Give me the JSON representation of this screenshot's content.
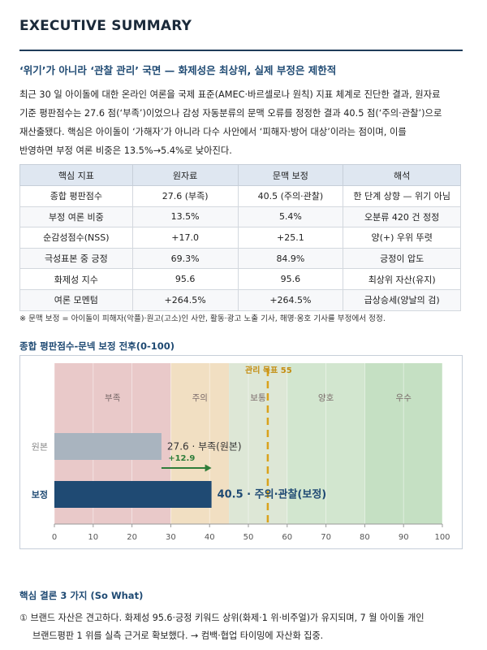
{
  "header": {
    "title": "EXECUTIVE SUMMARY",
    "headline": "‘위기’가 아니라 ‘관찰 관리’ 국면 — 화제성은 최상위, 실제 부정은 제한적"
  },
  "intro": {
    "lines": [
      "최근 30 일 아이돌에 대한 온라인 여론을 국제 표준(AMEC·바르셀로나 원칙) 지표 체계로 진단한 결과, 원자료",
      "기준 평판점수는 27.6 점(‘부족’)이었으나 감성 자동분류의 문맥 오류를 정정한 결과 40.5 점(‘주의·관찰’)으로",
      "재산출됐다. 핵심은 아이돌이 ‘가해자’가 아니라 다수 사안에서 ‘피해자·방어 대상’이라는 점이며, 이를",
      "반영하면 부정 여론 비중은 13.5%→5.4%로 낮아진다."
    ]
  },
  "table": {
    "headers": [
      "핵심 지표",
      "원자료",
      "문맥 보정",
      "해석"
    ],
    "rows": [
      [
        "종합 평판점수",
        "27.6 (부족)",
        "40.5 (주의·관찰)",
        "한 단계 상향 — 위기 아님"
      ],
      [
        "부정 여론 비중",
        "13.5%",
        "5.4%",
        "오분류 420 건 정정"
      ],
      [
        "순감성점수(NSS)",
        "+17.0",
        "+25.1",
        "양(+) 우위 뚜렷"
      ],
      [
        "극성표본 중 긍정",
        "69.3%",
        "84.9%",
        "긍정이 압도"
      ],
      [
        "화제성 지수",
        "95.6",
        "95.6",
        "최상위 자산(유지)"
      ],
      [
        "여론 모멘텀",
        "+264.5%",
        "+264.5%",
        "급상승세(양날의 검)"
      ]
    ],
    "footnote": "※ 문맥 보정 = 아이돌이 피해자(악플)·원고(고소)인 사안, 활동·광고 노출 기사, 해명·옹호 기사를 부정에서 정정."
  },
  "chart": {
    "title": "종합 평판점수-문넥 보정 전후(0-100)"
  },
  "chart_data": {
    "type": "bar",
    "orientation": "horizontal",
    "categories": [
      "원본",
      "보정"
    ],
    "values": [
      27.6,
      40.5
    ],
    "value_labels": [
      "27.6 · 부족(원본)",
      "40.5 · 주의·관찰(보정)"
    ],
    "delta_label": "+12.9",
    "xlim": [
      0,
      100
    ],
    "xticks": [
      0,
      10,
      20,
      30,
      40,
      50,
      60,
      70,
      80,
      90,
      100
    ],
    "bands": [
      {
        "label": "부족",
        "from": 0,
        "to": 30,
        "color": "#e9c9c9"
      },
      {
        "label": "주의",
        "from": 30,
        "to": 45,
        "color": "#f1dfc2"
      },
      {
        "label": "보통",
        "from": 45,
        "to": 60,
        "color": "#dde7d6"
      },
      {
        "label": "양호",
        "from": 60,
        "to": 80,
        "color": "#d2e6cf"
      },
      {
        "label": "우수",
        "from": 80,
        "to": 100,
        "color": "#c5e0c3"
      }
    ],
    "target": {
      "label": "관리 목표 55",
      "value": 55
    },
    "bar_colors": [
      "#a9b4bf",
      "#1f4a73"
    ],
    "grid": true
  },
  "conclusions": {
    "title": "핵심 결론 3 가지 (So What)",
    "items": [
      {
        "line1": "① 브랜드 자산은 견고하다. 화제성 95.6·긍정 키워드 상위(화제·1 위·비주얼)가 유지되며, 7 월 아이돌 개인",
        "line2": "브랜드평판 1 위를 실측 근거로 확보했다. → 컴백·협업 타이밍에 자산화 집중."
      }
    ]
  }
}
